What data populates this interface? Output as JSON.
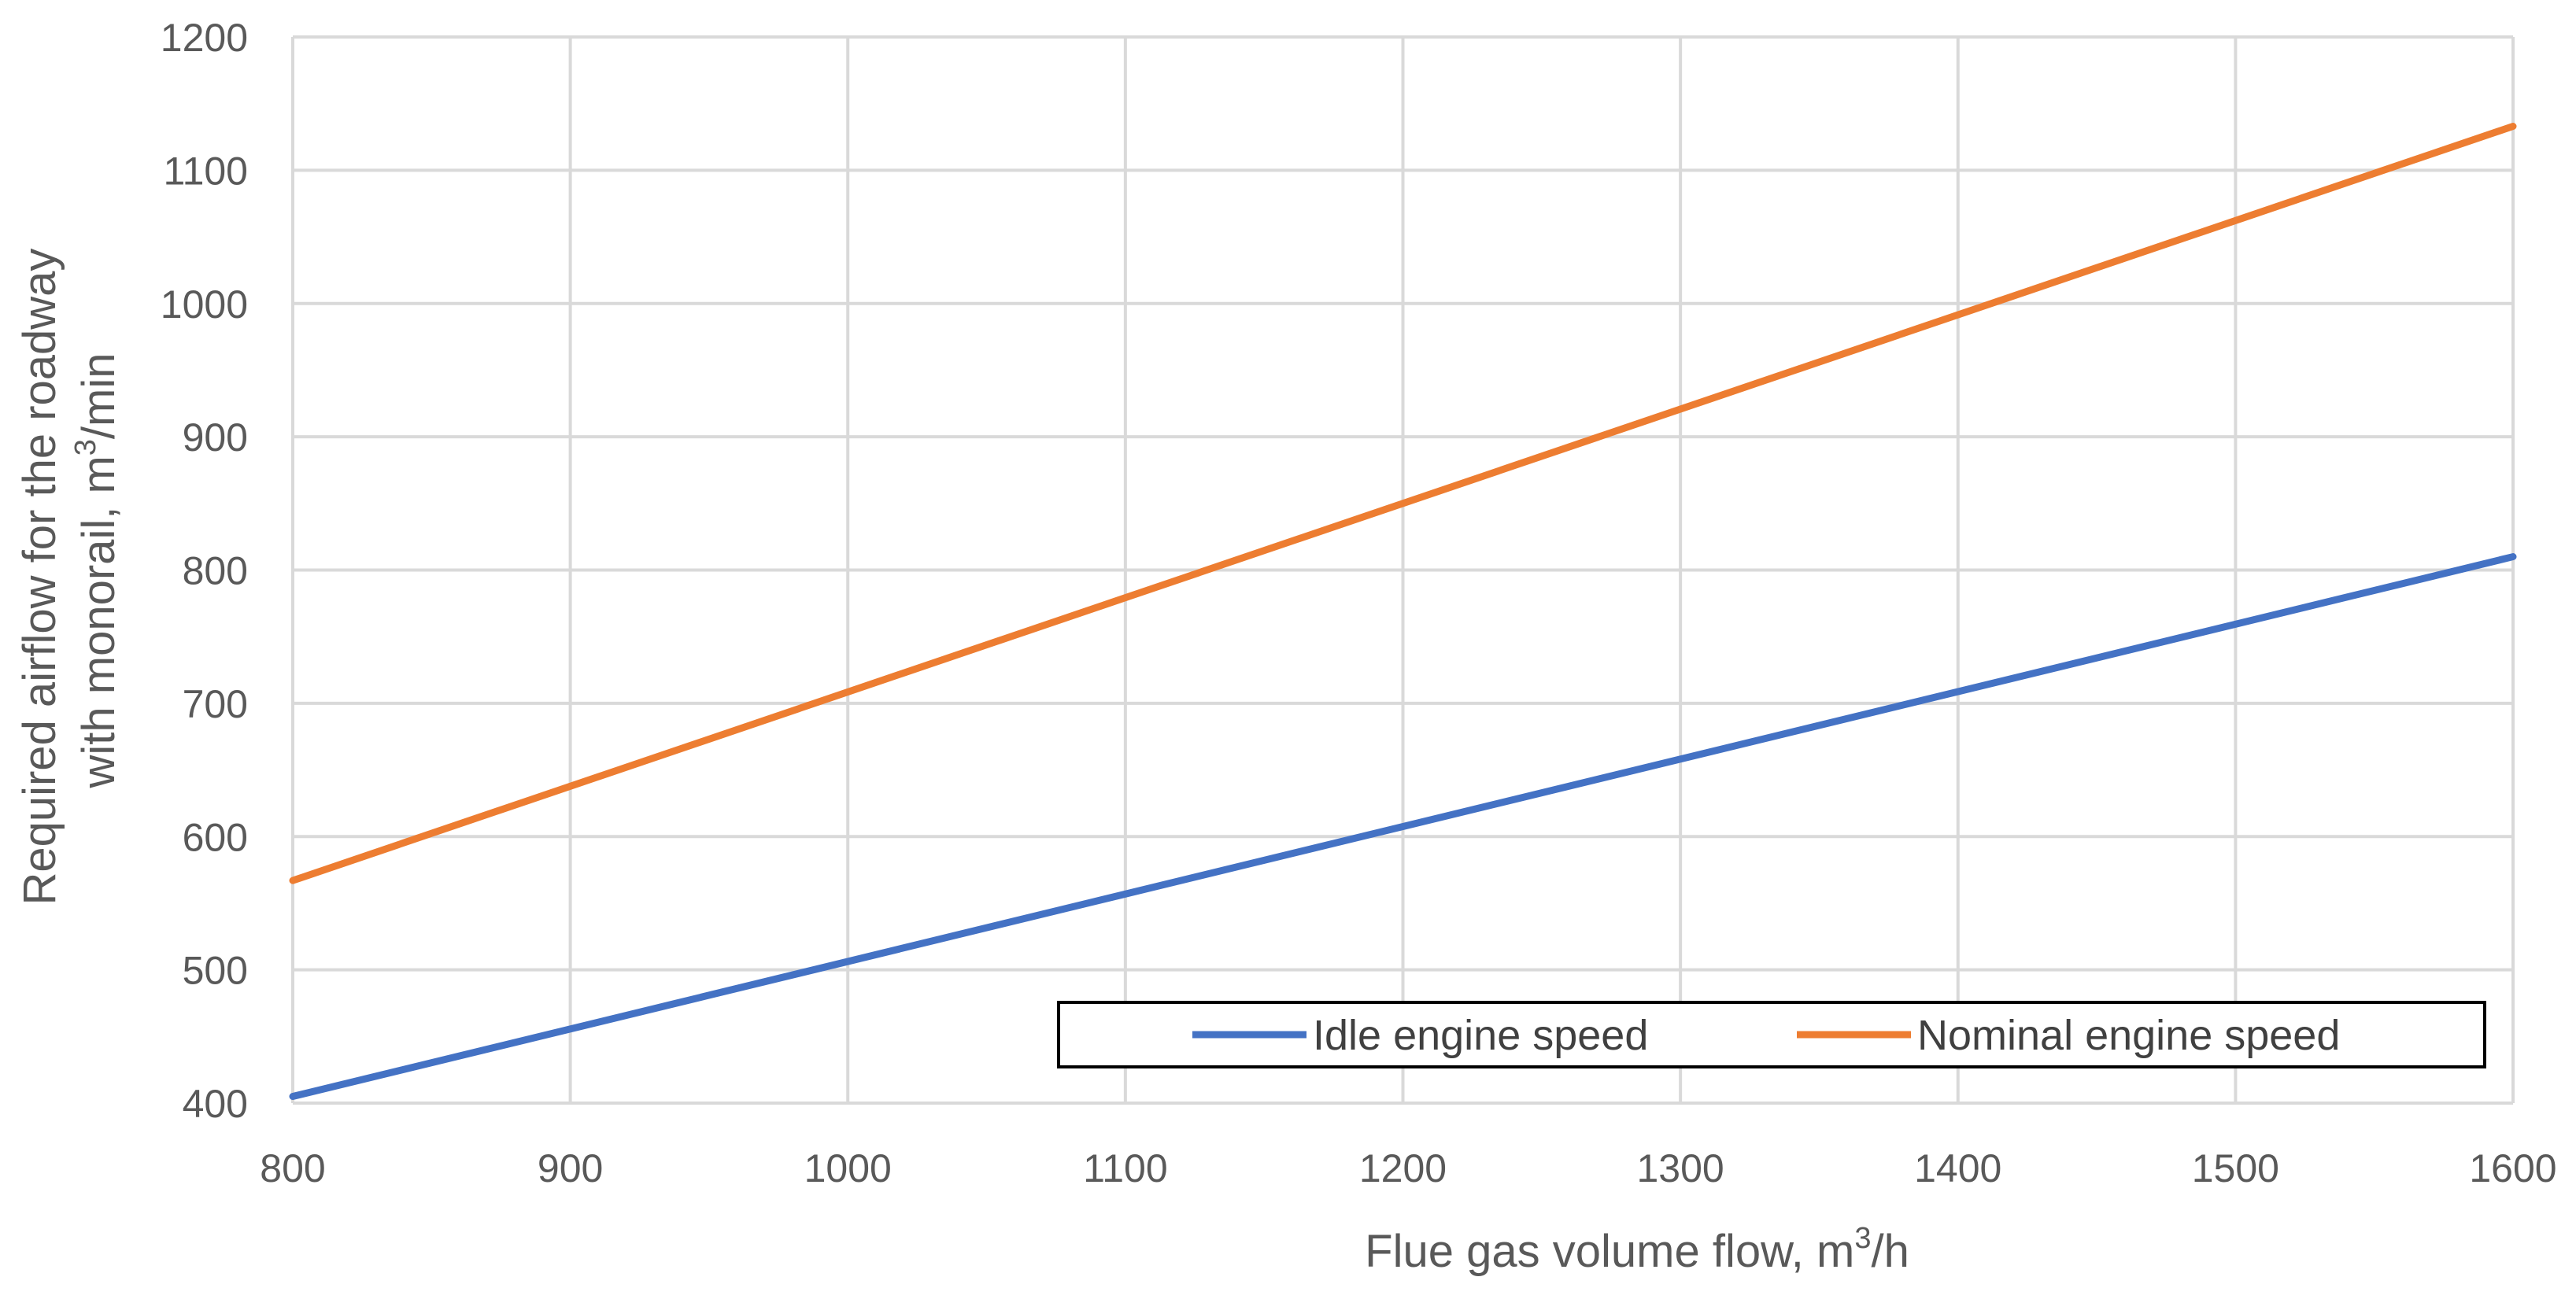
{
  "chart_data": {
    "type": "line",
    "title": "",
    "xlabel": {
      "base": "Flue gas volume flow, m",
      "sup": "3",
      "after": "/h"
    },
    "ylabel": {
      "line1": "Required airflow for the roadway",
      "line2_base": "with monorail, m",
      "line2_sup": "3",
      "line2_after": "/min"
    },
    "xlim": [
      800,
      1600
    ],
    "ylim": [
      400,
      1200
    ],
    "xticks": [
      800,
      900,
      1000,
      1100,
      1200,
      1300,
      1400,
      1500,
      1600
    ],
    "yticks": [
      400,
      500,
      600,
      700,
      800,
      900,
      1000,
      1100,
      1200
    ],
    "grid": true,
    "legend_position": "bottom-right",
    "series": [
      {
        "name": "Idle engine speed",
        "color": "#4472c4",
        "x": [
          800,
          1600
        ],
        "y": [
          405,
          810
        ]
      },
      {
        "name": "Nominal engine speed",
        "color": "#ed7d31",
        "x": [
          800,
          1600
        ],
        "y": [
          567,
          1133
        ]
      }
    ]
  }
}
